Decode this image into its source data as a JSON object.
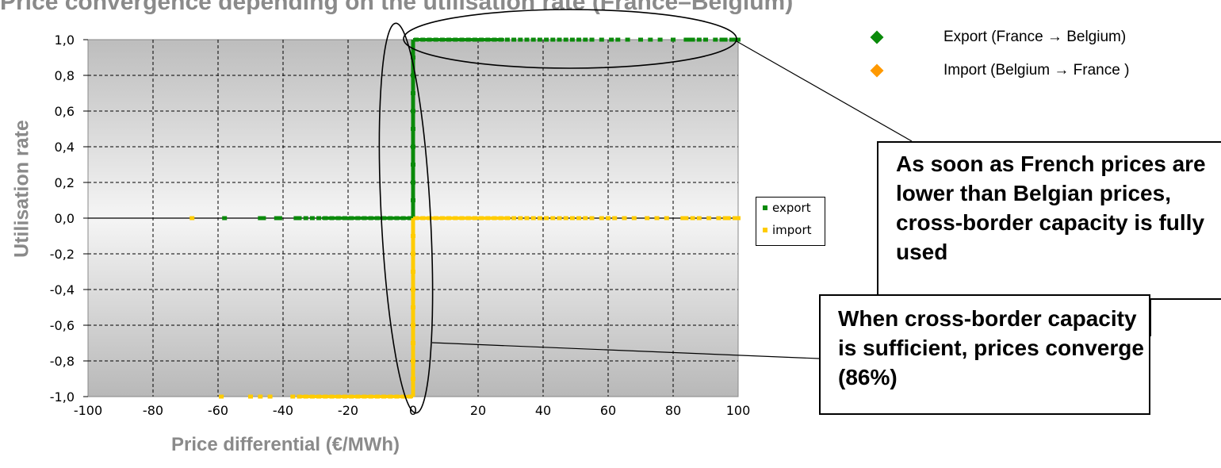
{
  "page": {
    "title_fragment": "Price convergence depending on the utilisation rate (France–Belgium)"
  },
  "legend": {
    "items": [
      {
        "label": "Export (France → Belgium)",
        "color": "#0a8a0a"
      },
      {
        "label": "Import (Belgium → France )",
        "color": "#ff9900"
      }
    ]
  },
  "annotations": {
    "top": "As soon as French prices are lower than Belgian prices, cross-border capacity is fully used",
    "bottom": "When cross-border capacity is sufficient, prices converge (86%)"
  },
  "chart_data": {
    "type": "scatter",
    "xlabel": "Price differential (€/MWh)",
    "ylabel": "Utilisation rate",
    "xlim": [
      -100,
      100
    ],
    "ylim": [
      -1.0,
      1.0
    ],
    "x_ticks": [
      -100,
      -80,
      -60,
      -40,
      -20,
      0,
      20,
      40,
      60,
      80,
      100
    ],
    "x_tick_labels": [
      "-100",
      "-80",
      "-60",
      "-40",
      "-20",
      "0",
      "20",
      "40",
      "60",
      "80",
      "100"
    ],
    "y_ticks": [
      1.0,
      0.8,
      0.6,
      0.4,
      0.2,
      0.0,
      -0.2,
      -0.4,
      -0.6,
      -0.8,
      -1.0
    ],
    "y_tick_labels": [
      "1,0",
      "0,8",
      "0,6",
      "0,4",
      "0,2",
      "0,0",
      "-0,2",
      "-0,4",
      "-0,6",
      "-0,8",
      "-1,0"
    ],
    "grid": true,
    "legend_position": "right",
    "series": [
      {
        "name": "export",
        "color": "#0a8a0a",
        "points": [
          [
            -58,
            0.0
          ],
          [
            -47,
            0.0
          ],
          [
            -46,
            0.0
          ],
          [
            -42,
            0.0
          ],
          [
            -41,
            0.0
          ],
          [
            -36,
            0.0
          ],
          [
            -35,
            0.0
          ],
          [
            -33,
            0.0
          ],
          [
            -31,
            0.0
          ],
          [
            -29,
            0.0
          ],
          [
            -27,
            0.0
          ],
          [
            -25,
            0.0
          ],
          [
            -23,
            0.0
          ],
          [
            -21,
            0.0
          ],
          [
            -19,
            0.0
          ],
          [
            -17,
            0.0
          ],
          [
            -15,
            0.0
          ],
          [
            -13,
            0.0
          ],
          [
            -11,
            0.0
          ],
          [
            -9,
            0.0
          ],
          [
            -7,
            0.0
          ],
          [
            -5,
            0.0
          ],
          [
            -3,
            0.0
          ],
          [
            -1,
            0.0
          ],
          [
            0,
            0.1
          ],
          [
            0,
            0.2
          ],
          [
            0,
            0.3
          ],
          [
            0,
            0.4
          ],
          [
            0,
            0.5
          ],
          [
            0,
            0.6
          ],
          [
            0,
            0.7
          ],
          [
            0,
            0.8
          ],
          [
            0,
            0.9
          ],
          [
            1,
            1.0
          ],
          [
            3,
            1.0
          ],
          [
            5,
            1.0
          ],
          [
            7,
            1.0
          ],
          [
            9,
            1.0
          ],
          [
            11,
            1.0
          ],
          [
            13,
            1.0
          ],
          [
            15,
            1.0
          ],
          [
            17,
            1.0
          ],
          [
            19,
            1.0
          ],
          [
            21,
            1.0
          ],
          [
            23,
            1.0
          ],
          [
            25,
            1.0
          ],
          [
            27,
            1.0
          ],
          [
            29,
            1.0
          ],
          [
            31,
            1.0
          ],
          [
            33,
            1.0
          ],
          [
            35,
            1.0
          ],
          [
            37,
            1.0
          ],
          [
            39,
            1.0
          ],
          [
            41,
            1.0
          ],
          [
            43,
            1.0
          ],
          [
            45,
            1.0
          ],
          [
            47,
            1.0
          ],
          [
            49,
            1.0
          ],
          [
            51,
            1.0
          ],
          [
            53,
            1.0
          ],
          [
            55,
            1.0
          ],
          [
            58,
            1.0
          ],
          [
            61,
            1.0
          ],
          [
            63,
            1.0
          ],
          [
            66,
            1.0
          ],
          [
            70,
            1.0
          ],
          [
            73,
            1.0
          ],
          [
            76,
            1.0
          ],
          [
            80,
            1.0
          ],
          [
            84,
            1.0
          ],
          [
            85,
            1.0
          ],
          [
            86,
            1.0
          ],
          [
            88,
            1.0
          ],
          [
            90,
            1.0
          ],
          [
            93,
            1.0
          ],
          [
            95,
            1.0
          ],
          [
            96,
            1.0
          ],
          [
            98,
            1.0
          ],
          [
            99,
            1.0
          ],
          [
            100,
            1.0
          ]
        ]
      },
      {
        "name": "import",
        "color": "#ffcc00",
        "points": [
          [
            -68,
            0.0
          ],
          [
            -59,
            -1.0
          ],
          [
            -50,
            -1.0
          ],
          [
            -47,
            -1.0
          ],
          [
            -44,
            -1.0
          ],
          [
            -37,
            -1.0
          ],
          [
            -35,
            -1.0
          ],
          [
            -33,
            -1.0
          ],
          [
            -31,
            -1.0
          ],
          [
            -29,
            -1.0
          ],
          [
            -27,
            -1.0
          ],
          [
            -25,
            -1.0
          ],
          [
            -23,
            -1.0
          ],
          [
            -21,
            -1.0
          ],
          [
            -19,
            -1.0
          ],
          [
            -17,
            -1.0
          ],
          [
            -15,
            -1.0
          ],
          [
            -13,
            -1.0
          ],
          [
            -11,
            -1.0
          ],
          [
            -9,
            -1.0
          ],
          [
            -7,
            -1.0
          ],
          [
            -5,
            -1.0
          ],
          [
            -3,
            -1.0
          ],
          [
            -1,
            -1.0
          ],
          [
            0,
            -0.9
          ],
          [
            0,
            -0.8
          ],
          [
            0,
            -0.7
          ],
          [
            0,
            -0.6
          ],
          [
            0,
            -0.5
          ],
          [
            0,
            -0.4
          ],
          [
            0,
            -0.3
          ],
          [
            0,
            -0.2
          ],
          [
            0,
            -0.1
          ],
          [
            1,
            0.0
          ],
          [
            3,
            0.0
          ],
          [
            5,
            0.0
          ],
          [
            7,
            0.0
          ],
          [
            9,
            0.0
          ],
          [
            11,
            0.0
          ],
          [
            13,
            0.0
          ],
          [
            15,
            0.0
          ],
          [
            17,
            0.0
          ],
          [
            19,
            0.0
          ],
          [
            21,
            0.0
          ],
          [
            23,
            0.0
          ],
          [
            25,
            0.0
          ],
          [
            27,
            0.0
          ],
          [
            29,
            0.0
          ],
          [
            31,
            0.0
          ],
          [
            33,
            0.0
          ],
          [
            35,
            0.0
          ],
          [
            37,
            0.0
          ],
          [
            39,
            0.0
          ],
          [
            41,
            0.0
          ],
          [
            43,
            0.0
          ],
          [
            45,
            0.0
          ],
          [
            47,
            0.0
          ],
          [
            49,
            0.0
          ],
          [
            51,
            0.0
          ],
          [
            53,
            0.0
          ],
          [
            55,
            0.0
          ],
          [
            58,
            0.0
          ],
          [
            60,
            0.0
          ],
          [
            62,
            0.0
          ],
          [
            65,
            0.0
          ],
          [
            68,
            0.0
          ],
          [
            72,
            0.0
          ],
          [
            75,
            0.0
          ],
          [
            78,
            0.0
          ],
          [
            83,
            0.0
          ],
          [
            84,
            0.0
          ],
          [
            86,
            0.0
          ],
          [
            88,
            0.0
          ],
          [
            91,
            0.0
          ],
          [
            94,
            0.0
          ],
          [
            96,
            0.0
          ],
          [
            97,
            0.0
          ],
          [
            99,
            0.0
          ],
          [
            100,
            0.0
          ]
        ]
      }
    ]
  }
}
